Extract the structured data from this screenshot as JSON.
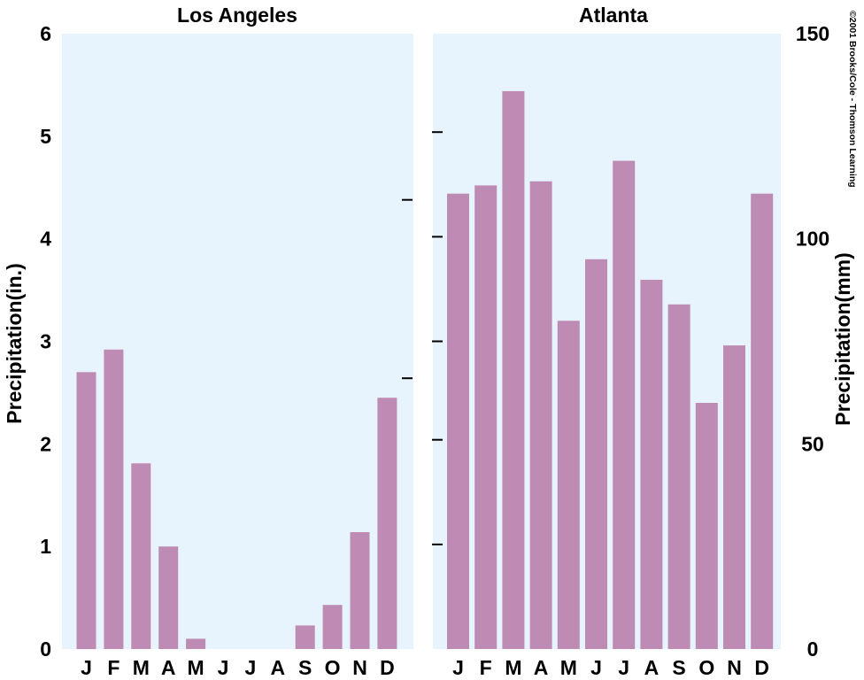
{
  "copyright": "©2001 Brooks/Cole - Thomson Learning",
  "colors": {
    "bar": "#bd8bb3",
    "panel": "#e8f4fd",
    "axis": "#000000"
  },
  "chart_data": [
    {
      "type": "bar",
      "title": "Los Angeles",
      "ylabel": "Precipitation(in.)",
      "ylim": [
        0,
        6
      ],
      "yticks": [
        "0",
        "1",
        "2",
        "3",
        "4",
        "5",
        "6"
      ],
      "y_axis_side": "left",
      "categories": [
        "J",
        "F",
        "M",
        "A",
        "M",
        "J",
        "J",
        "A",
        "S",
        "O",
        "N",
        "D"
      ],
      "values": [
        2.7,
        2.92,
        1.81,
        1.0,
        0.1,
        0,
        0,
        0,
        0.23,
        0.43,
        1.14,
        2.45
      ]
    },
    {
      "type": "bar",
      "title": "Atlanta",
      "ylabel": "Precipitation(mm)",
      "ylim": [
        0,
        150
      ],
      "yticks": [
        "0",
        "50",
        "100",
        "150"
      ],
      "y_axis_side": "right",
      "categories": [
        "J",
        "F",
        "M",
        "A",
        "M",
        "J",
        "J",
        "A",
        "S",
        "O",
        "N",
        "D"
      ],
      "values": [
        111,
        113,
        136,
        114,
        80,
        95,
        119,
        90,
        84,
        60,
        74,
        111
      ]
    }
  ]
}
